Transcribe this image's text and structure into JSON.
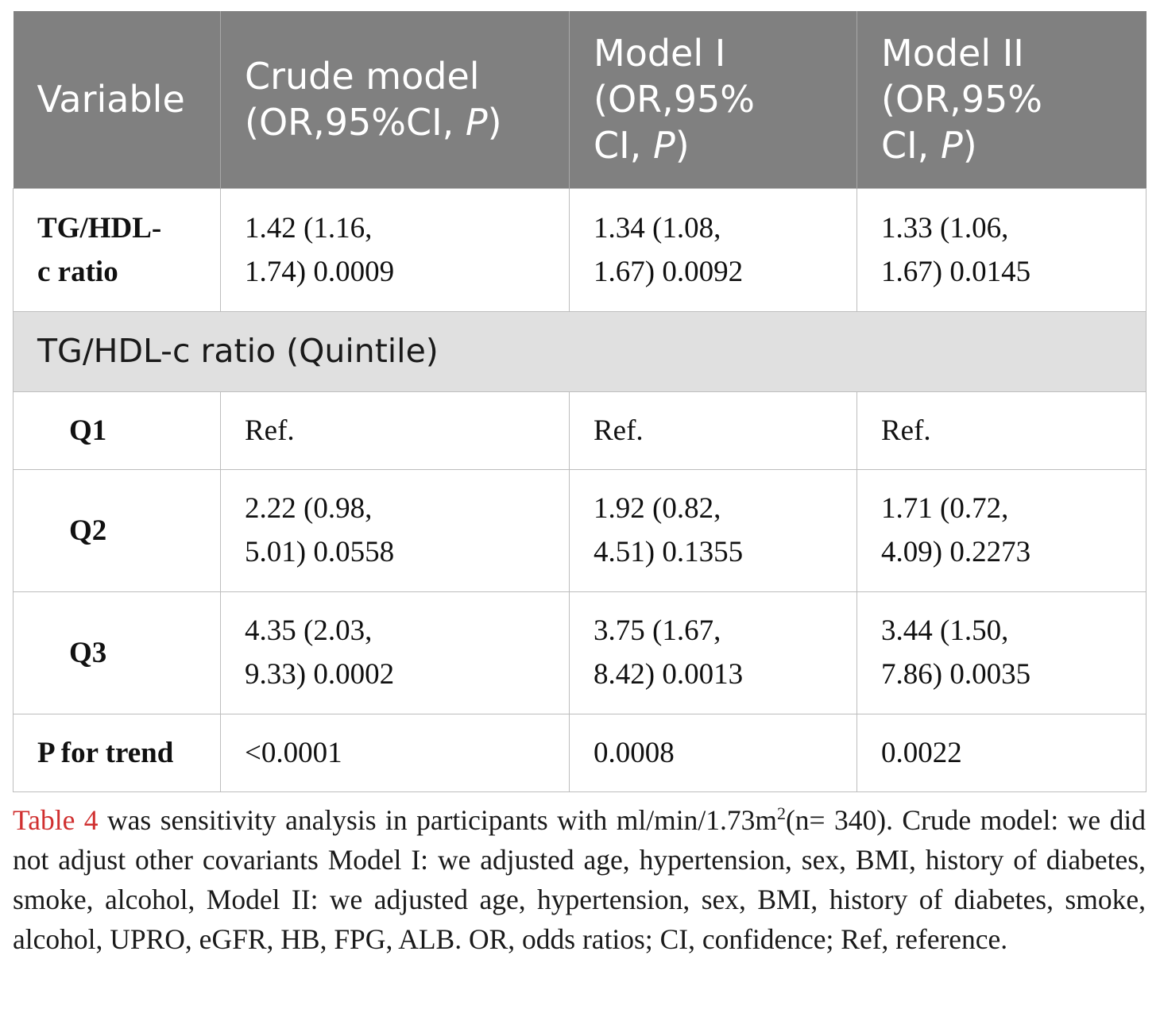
{
  "table": {
    "header": {
      "variable": "Variable",
      "crude_line1": "Crude model",
      "crude_line2": "(OR,95%CI, ",
      "model1_line1": "Model I",
      "model1_line2": "(OR,95%",
      "model1_line3": "CI, ",
      "model2_line1": "Model II",
      "model2_line2": "(OR,95%",
      "model2_line3": "CI, ",
      "p_letter": "P",
      "close_paren": ")"
    },
    "rows": [
      {
        "var_line1": "TG/HDL-",
        "var_line2": "c ratio",
        "crude_line1": "1.42 (1.16,",
        "crude_line2": "1.74) 0.0009",
        "m1_line1": "1.34 (1.08,",
        "m1_line2": "1.67) 0.0092",
        "m2_line1": "1.33 (1.06,",
        "m2_line2": "1.67) 0.0145"
      },
      {
        "section": "TG/HDL-c ratio (Quintile)"
      },
      {
        "var": "Q1",
        "crude": "Ref.",
        "m1": "Ref.",
        "m2": "Ref."
      },
      {
        "var": "Q2",
        "crude_line1": "2.22 (0.98,",
        "crude_line2": "5.01) 0.0558",
        "m1_line1": "1.92 (0.82,",
        "m1_line2": "4.51) 0.1355",
        "m2_line1": "1.71 (0.72,",
        "m2_line2": "4.09) 0.2273"
      },
      {
        "var": "Q3",
        "crude_line1": "4.35 (2.03,",
        "crude_line2": "9.33) 0.0002",
        "m1_line1": "3.75 (1.67,",
        "m1_line2": "8.42) 0.0013",
        "m2_line1": "3.44 (1.50,",
        "m2_line2": "7.86) 0.0035"
      },
      {
        "var": "P for trend",
        "crude": "<0.0001",
        "m1": "0.0008",
        "m2": "0.0022"
      }
    ]
  },
  "caption": {
    "ref_label": "Table 4",
    "text_before_sup": " was sensitivity analysis in participants with ml/min/1.73m",
    "sup": "2",
    "text_after_sup": "(n= 340). Crude model: we did not adjust other covariants Model I: we adjusted age, hypertension, sex, BMI, history of diabetes, smoke, alcohol, Model II: we adjusted age, hypertension, sex, BMI, history of diabetes, smoke, alcohol, UPRO, eGFR, HB, FPG, ALB. OR, odds ratios; CI, confidence; Ref, reference."
  },
  "colors": {
    "header_bg": "#808080",
    "section_bg": "#e0e0e0",
    "ref_link": "#d03030"
  }
}
